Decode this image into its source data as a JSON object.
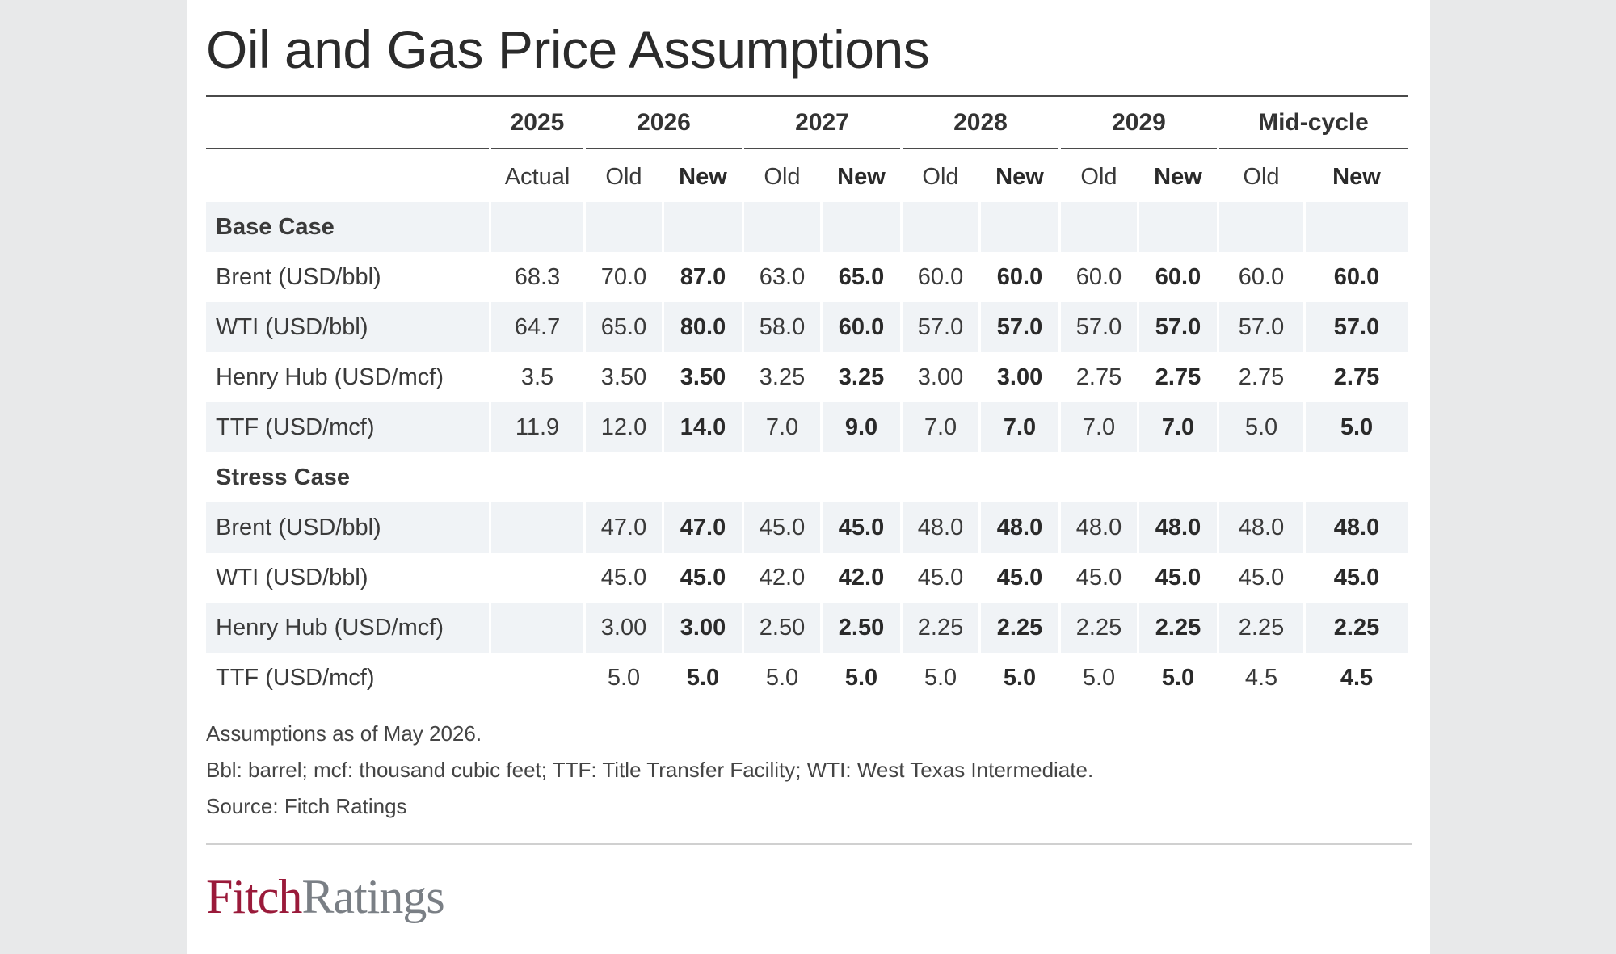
{
  "title": "Oil and Gas Price Assumptions",
  "header": {
    "years": [
      "2025",
      "2026",
      "2027",
      "2028",
      "2029",
      "Mid-cycle"
    ],
    "sub": [
      "Actual",
      "Old",
      "New",
      "Old",
      "New",
      "Old",
      "New",
      "Old",
      "New",
      "Old",
      "New"
    ]
  },
  "sections": [
    {
      "name": "Base Case",
      "rows": [
        {
          "label": "Brent (USD/bbl)",
          "values": [
            "68.3",
            "70.0",
            "87.0",
            "63.0",
            "65.0",
            "60.0",
            "60.0",
            "60.0",
            "60.0",
            "60.0",
            "60.0"
          ]
        },
        {
          "label": "WTI (USD/bbl)",
          "values": [
            "64.7",
            "65.0",
            "80.0",
            "58.0",
            "60.0",
            "57.0",
            "57.0",
            "57.0",
            "57.0",
            "57.0",
            "57.0"
          ]
        },
        {
          "label": "Henry Hub (USD/mcf)",
          "values": [
            "3.5",
            "3.50",
            "3.50",
            "3.25",
            "3.25",
            "3.00",
            "3.00",
            "2.75",
            "2.75",
            "2.75",
            "2.75"
          ]
        },
        {
          "label": "TTF (USD/mcf)",
          "values": [
            "11.9",
            "12.0",
            "14.0",
            "7.0",
            "9.0",
            "7.0",
            "7.0",
            "7.0",
            "7.0",
            "5.0",
            "5.0"
          ]
        }
      ]
    },
    {
      "name": "Stress Case",
      "rows": [
        {
          "label": "Brent (USD/bbl)",
          "values": [
            "",
            "47.0",
            "47.0",
            "45.0",
            "45.0",
            "48.0",
            "48.0",
            "48.0",
            "48.0",
            "48.0",
            "48.0"
          ]
        },
        {
          "label": "WTI (USD/bbl)",
          "values": [
            "",
            "45.0",
            "45.0",
            "42.0",
            "42.0",
            "45.0",
            "45.0",
            "45.0",
            "45.0",
            "45.0",
            "45.0"
          ]
        },
        {
          "label": "Henry Hub (USD/mcf)",
          "values": [
            "",
            "3.00",
            "3.00",
            "2.50",
            "2.50",
            "2.25",
            "2.25",
            "2.25",
            "2.25",
            "2.25",
            "2.25"
          ]
        },
        {
          "label": "TTF (USD/mcf)",
          "values": [
            "",
            "5.0",
            "5.0",
            "5.0",
            "5.0",
            "5.0",
            "5.0",
            "5.0",
            "5.0",
            "4.5",
            "4.5"
          ]
        }
      ]
    }
  ],
  "notes": [
    "Assumptions as of May 2026.",
    "Bbl: barrel; mcf: thousand cubic feet; TTF: Title Transfer Facility; WTI: West Texas Intermediate.",
    "Source: Fitch Ratings"
  ],
  "logo": {
    "part1": "Fitch",
    "part2": "Ratings"
  },
  "colors": {
    "background": "#e8e9ea",
    "row_shade": "#f0f3f6",
    "logo_fitch": "#9a1a3a",
    "logo_ratings": "#7a7f85"
  }
}
